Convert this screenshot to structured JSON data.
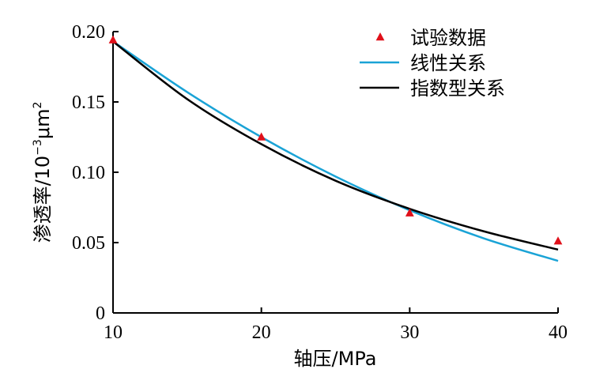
{
  "chart_data": {
    "type": "line",
    "xlabel": "轴压/MPa",
    "ylabel": {
      "main": "渗透率/10",
      "exp": "−3",
      "unit": "μm",
      "unit_exp": "2"
    },
    "xlim": [
      10,
      40
    ],
    "ylim": [
      0,
      0.2
    ],
    "x_ticks": [
      "10",
      "20",
      "30",
      "40"
    ],
    "y_ticks": [
      "0",
      "0.05",
      "0.10",
      "0.15",
      "0.20"
    ],
    "grid": false,
    "legend_position": "top-right",
    "series": [
      {
        "name": "试验数据",
        "kind": "marker",
        "color": "#e0101a",
        "x": [
          10,
          20,
          30,
          40
        ],
        "y": [
          0.194,
          0.125,
          0.071,
          0.051
        ]
      },
      {
        "name": "线性关系",
        "kind": "line",
        "color": "#1aa3d6",
        "x": [
          10,
          15,
          20,
          25,
          30,
          35,
          40
        ],
        "y": [
          0.193,
          0.157,
          0.125,
          0.097,
          0.073,
          0.053,
          0.037
        ]
      },
      {
        "name": "指数型关系",
        "kind": "line",
        "color": "#000000",
        "x": [
          10,
          15,
          20,
          25,
          30,
          35,
          40
        ],
        "y": [
          0.193,
          0.152,
          0.12,
          0.094,
          0.074,
          0.058,
          0.045
        ]
      }
    ]
  }
}
